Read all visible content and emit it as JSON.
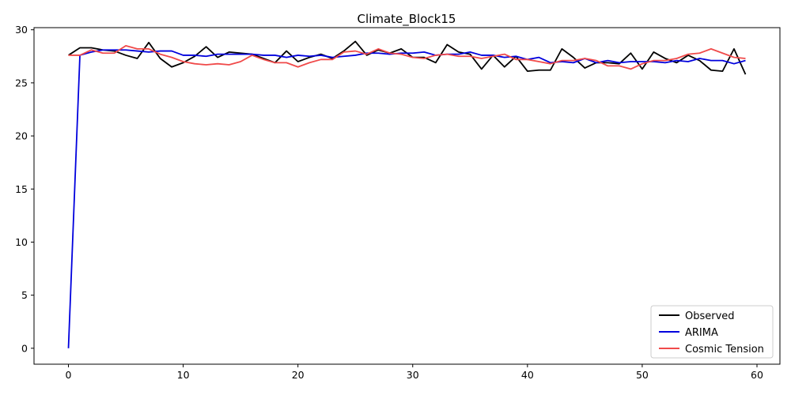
{
  "chart_data": {
    "type": "line",
    "title": "Climate_Block15",
    "xlabel": "",
    "ylabel": "",
    "xlim": [
      -3,
      62
    ],
    "ylim": [
      -1.5,
      30.2
    ],
    "x_ticks": [
      0,
      10,
      20,
      30,
      40,
      50,
      60
    ],
    "y_ticks": [
      0,
      5,
      10,
      15,
      20,
      25,
      30
    ],
    "grid": false,
    "legend_position": "bottom-right",
    "series": [
      {
        "name": "Observed",
        "color": "#000000",
        "values": [
          27.6,
          28.3,
          28.3,
          28.1,
          28.0,
          27.6,
          27.3,
          28.8,
          27.3,
          26.5,
          26.9,
          27.5,
          28.4,
          27.4,
          27.9,
          27.8,
          27.7,
          27.3,
          26.9,
          28.0,
          27.0,
          27.4,
          27.7,
          27.3,
          28.0,
          28.9,
          27.6,
          28.1,
          27.8,
          28.2,
          27.4,
          27.4,
          26.9,
          28.6,
          27.9,
          27.7,
          26.3,
          27.6,
          26.5,
          27.5,
          26.1,
          26.2,
          26.2,
          28.2,
          27.4,
          26.4,
          26.9,
          26.9,
          26.8,
          27.8,
          26.3,
          27.9,
          27.3,
          26.9,
          27.6,
          27.1,
          26.2,
          26.1,
          28.2,
          25.8
        ]
      },
      {
        "name": "ARIMA",
        "color": "#0000dd",
        "values": [
          0.0,
          27.6,
          27.9,
          28.1,
          28.1,
          28.1,
          28.0,
          27.9,
          28.0,
          28.0,
          27.6,
          27.6,
          27.5,
          27.7,
          27.7,
          27.7,
          27.7,
          27.6,
          27.6,
          27.4,
          27.6,
          27.5,
          27.6,
          27.4,
          27.5,
          27.6,
          27.8,
          27.8,
          27.7,
          27.8,
          27.8,
          27.9,
          27.6,
          27.7,
          27.7,
          27.9,
          27.6,
          27.6,
          27.4,
          27.5,
          27.2,
          27.4,
          26.9,
          27.0,
          26.9,
          27.3,
          26.9,
          27.1,
          26.9,
          27.0,
          27.0,
          27.0,
          26.9,
          27.1,
          27.0,
          27.3,
          27.1,
          27.1,
          26.8,
          27.1
        ]
      },
      {
        "name": "Cosmic Tension",
        "color": "#f04a4a",
        "values": [
          27.6,
          27.6,
          28.1,
          27.8,
          27.8,
          28.5,
          28.2,
          28.2,
          27.7,
          27.4,
          27.0,
          26.8,
          26.7,
          26.8,
          26.7,
          27.0,
          27.6,
          27.2,
          26.9,
          26.9,
          26.5,
          26.9,
          27.2,
          27.2,
          27.9,
          28.0,
          27.7,
          28.2,
          27.8,
          27.7,
          27.4,
          27.3,
          27.6,
          27.7,
          27.5,
          27.5,
          27.3,
          27.5,
          27.7,
          27.2,
          27.2,
          27.0,
          26.8,
          27.1,
          27.1,
          27.3,
          27.1,
          26.6,
          26.6,
          26.3,
          26.8,
          27.1,
          27.1,
          27.3,
          27.7,
          27.8,
          28.2,
          27.8,
          27.4,
          27.3
        ]
      }
    ]
  }
}
